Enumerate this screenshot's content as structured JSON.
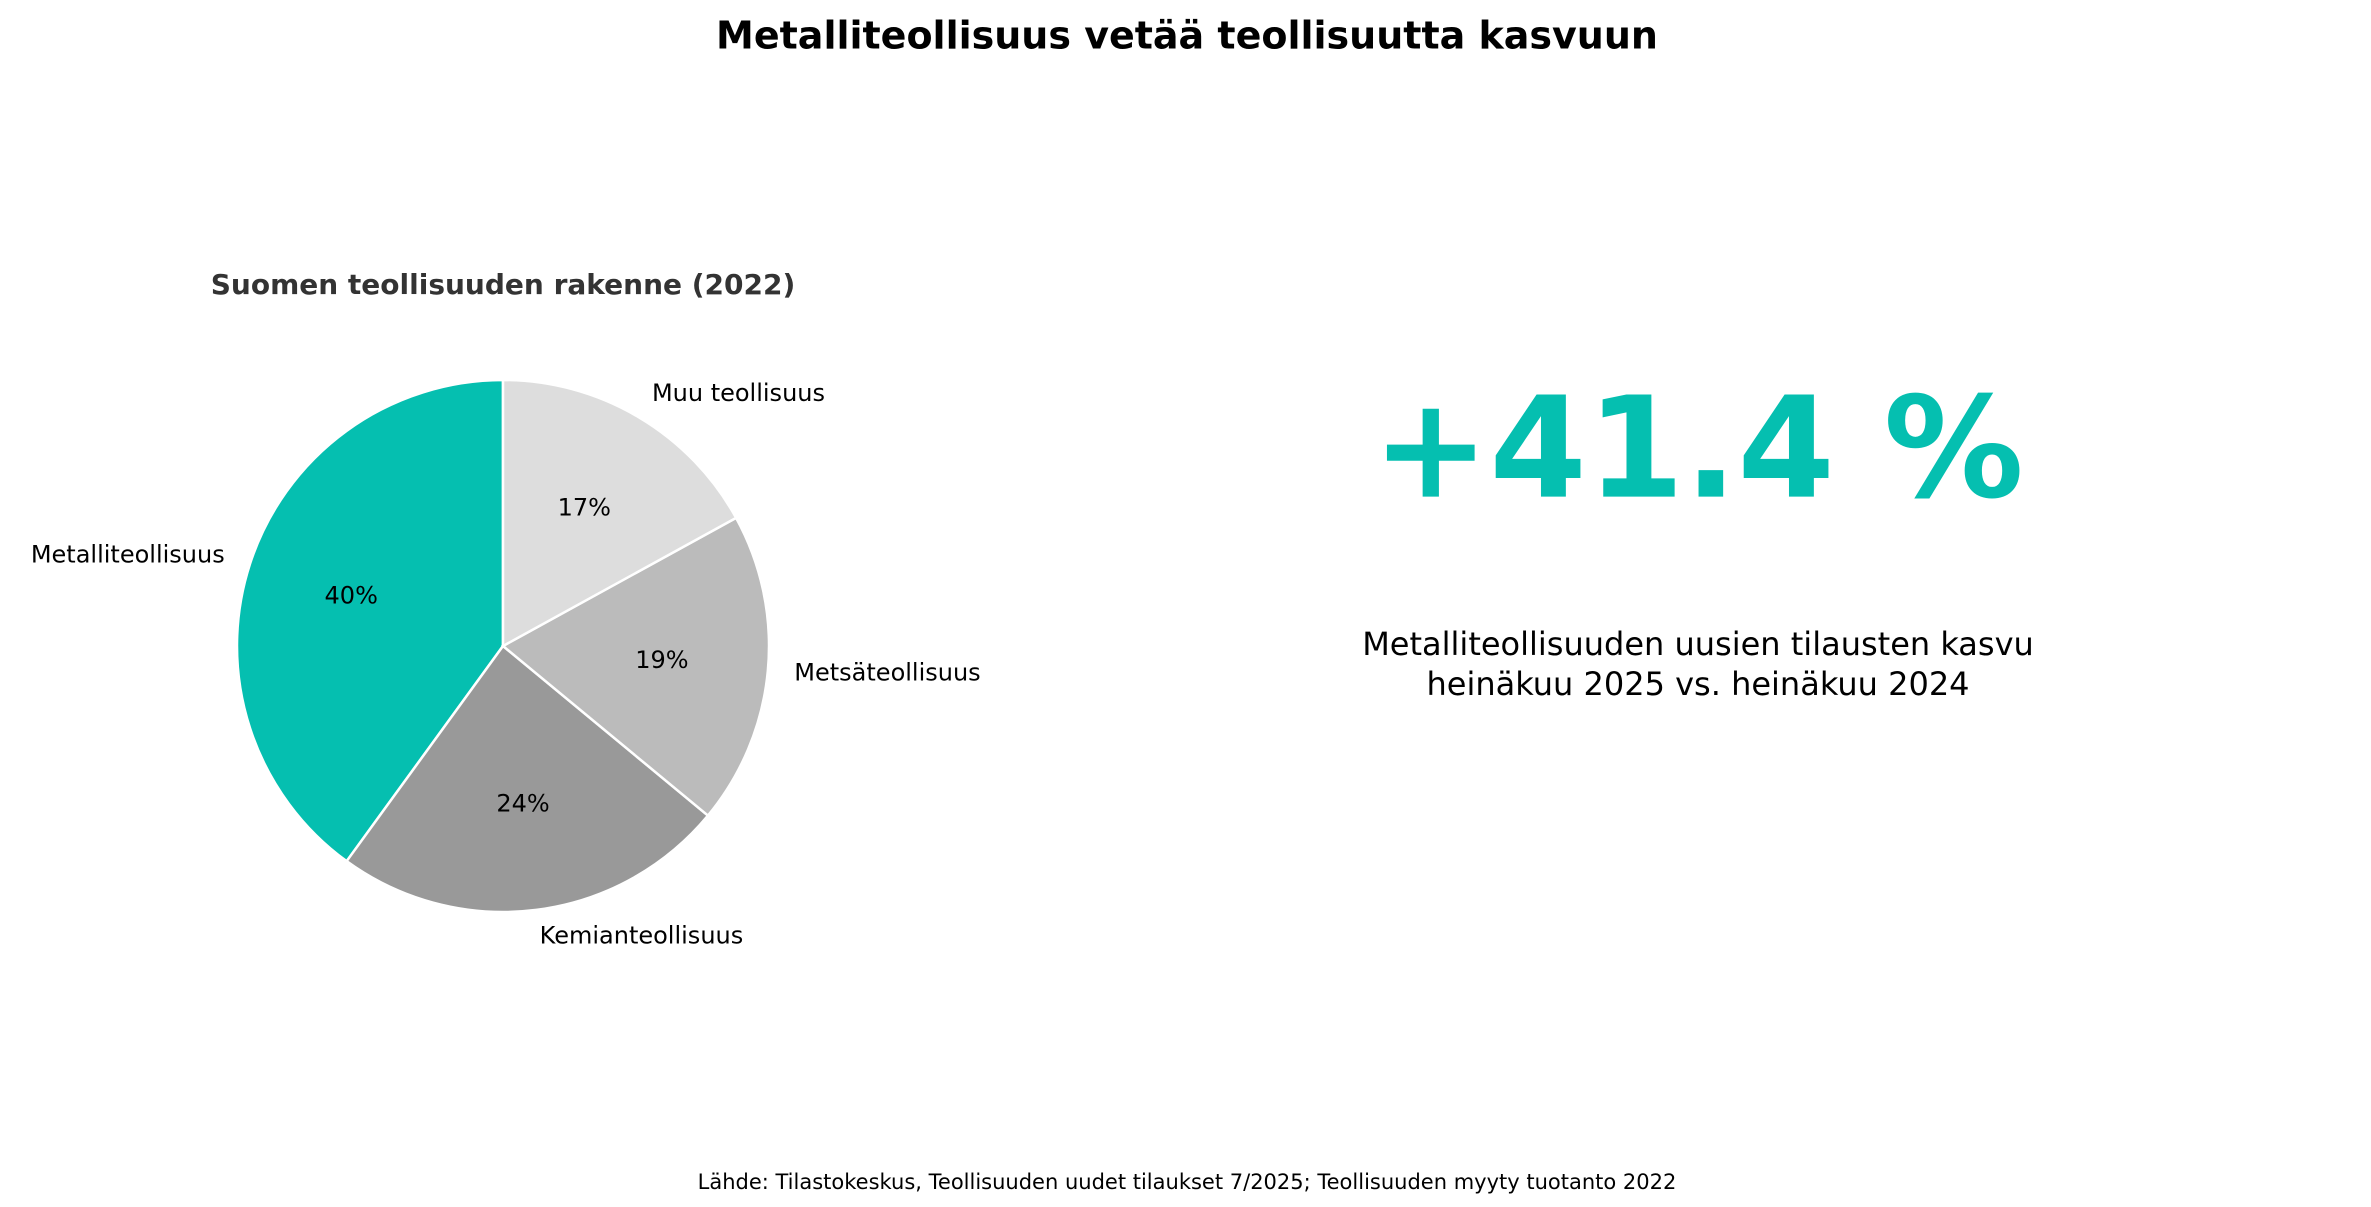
{
  "title": "Metalliteollisuus vetää teollisuutta kasvuun",
  "chart_data": {
    "type": "pie",
    "title": "Suomen teollisuuden rakenne (2022)",
    "categories": [
      "Metalliteollisuus",
      "Kemianteollisuus",
      "Metsäteollisuus",
      "Muu teollisuus"
    ],
    "values": [
      40,
      24,
      19,
      17
    ],
    "value_labels": [
      "40%",
      "24%",
      "19%",
      "17%"
    ],
    "colors": [
      "#05bfb0",
      "#999999",
      "#bbbbbb",
      "#dddddd"
    ]
  },
  "kpi": {
    "text": "+41.4 %",
    "color": "#05bfb0",
    "caption": [
      "Metalliteollisuuden uusien tilausten kasvu",
      "heinäkuu 2025 vs. heinäkuu 2024"
    ]
  },
  "source": "Lähde: Tilastokeskus, Teollisuuden uudet tilaukset 7/2025; Teollisuuden myyty tuotanto 2022"
}
